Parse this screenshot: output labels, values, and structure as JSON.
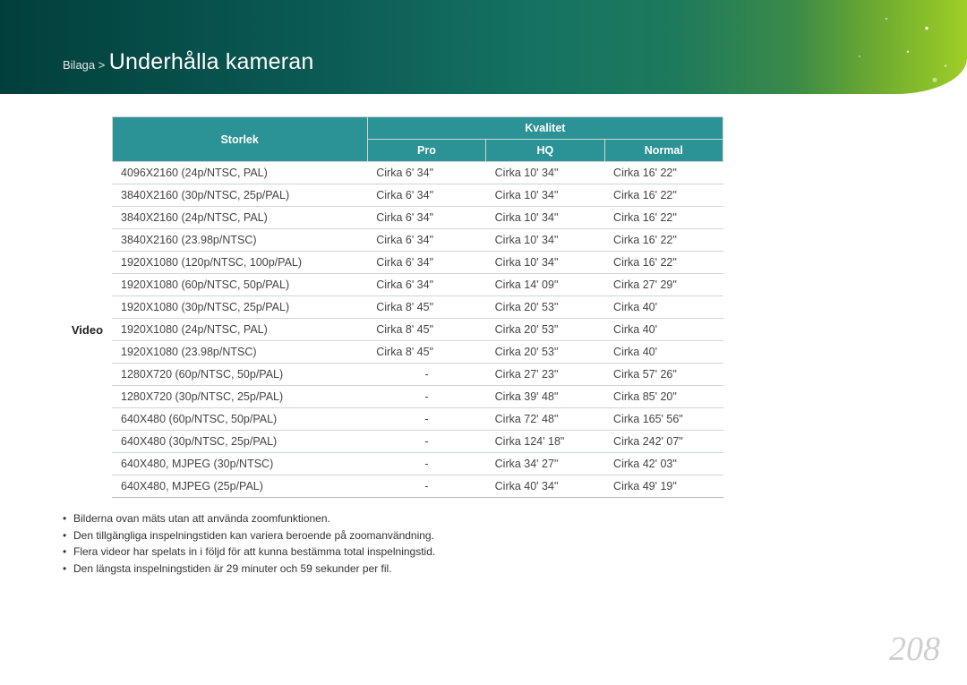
{
  "header": {
    "breadcrumb_prefix": "Bilaga >",
    "title": "Underhålla kameran"
  },
  "table": {
    "header": {
      "storlek": "Storlek",
      "kvalitet": "Kvalitet",
      "pro": "Pro",
      "hq": "HQ",
      "normal": "Normal"
    },
    "row_label": "Video",
    "rows": [
      {
        "storlek": "4096X2160 (24p/NTSC, PAL)",
        "pro": "Cirka 6' 34\"",
        "hq": "Cirka 10' 34\"",
        "normal": "Cirka 16' 22\""
      },
      {
        "storlek": "3840X2160 (30p/NTSC, 25p/PAL)",
        "pro": "Cirka 6' 34\"",
        "hq": "Cirka 10' 34\"",
        "normal": "Cirka 16' 22\""
      },
      {
        "storlek": "3840X2160 (24p/NTSC, PAL)",
        "pro": "Cirka 6' 34\"",
        "hq": "Cirka 10' 34\"",
        "normal": "Cirka 16' 22\""
      },
      {
        "storlek": "3840X2160 (23.98p/NTSC)",
        "pro": "Cirka 6' 34\"",
        "hq": "Cirka 10' 34\"",
        "normal": "Cirka 16' 22\""
      },
      {
        "storlek": "1920X1080 (120p/NTSC, 100p/PAL)",
        "pro": "Cirka 6' 34\"",
        "hq": "Cirka 10' 34\"",
        "normal": "Cirka 16' 22\""
      },
      {
        "storlek": "1920X1080 (60p/NTSC, 50p/PAL)",
        "pro": "Cirka 6' 34\"",
        "hq": "Cirka 14' 09\"",
        "normal": "Cirka 27' 29\""
      },
      {
        "storlek": "1920X1080 (30p/NTSC, 25p/PAL)",
        "pro": "Cirka 8' 45\"",
        "hq": "Cirka 20' 53\"",
        "normal": "Cirka 40'"
      },
      {
        "storlek": "1920X1080 (24p/NTSC, PAL)",
        "pro": "Cirka 8' 45\"",
        "hq": "Cirka 20' 53\"",
        "normal": "Cirka 40'"
      },
      {
        "storlek": "1920X1080 (23.98p/NTSC)",
        "pro": "Cirka 8' 45\"",
        "hq": "Cirka 20' 53\"",
        "normal": "Cirka 40'"
      },
      {
        "storlek": "1280X720 (60p/NTSC, 50p/PAL)",
        "pro": "-",
        "hq": "Cirka 27' 23\"",
        "normal": "Cirka 57' 26\""
      },
      {
        "storlek": "1280X720 (30p/NTSC, 25p/PAL)",
        "pro": "-",
        "hq": "Cirka 39' 48\"",
        "normal": "Cirka 85' 20\""
      },
      {
        "storlek": "640X480 (60p/NTSC, 50p/PAL)",
        "pro": "-",
        "hq": "Cirka 72' 48\"",
        "normal": "Cirka 165' 56\""
      },
      {
        "storlek": "640X480 (30p/NTSC, 25p/PAL)",
        "pro": "-",
        "hq": "Cirka 124' 18\"",
        "normal": "Cirka 242' 07\""
      },
      {
        "storlek": "640X480, MJPEG (30p/NTSC)",
        "pro": "-",
        "hq": "Cirka 34' 27\"",
        "normal": "Cirka 42' 03\""
      },
      {
        "storlek": "640X480, MJPEG (25p/PAL)",
        "pro": "-",
        "hq": "Cirka 40' 34\"",
        "normal": "Cirka 49' 19\""
      }
    ],
    "colors": {
      "header_bg": "#2b9295",
      "header_fg": "#ffffff",
      "border": "#cfd6d6"
    }
  },
  "notes": [
    "Bilderna ovan mäts utan att använda zoomfunktionen.",
    "Den tillgängliga inspelningstiden kan variera beroende på zoomanvändning.",
    "Flera videor har spelats in i följd för att kunna bestämma total inspelningstid.",
    "Den längsta inspelningstiden är 29 minuter och 59 sekunder per fil."
  ],
  "page_number": "208"
}
